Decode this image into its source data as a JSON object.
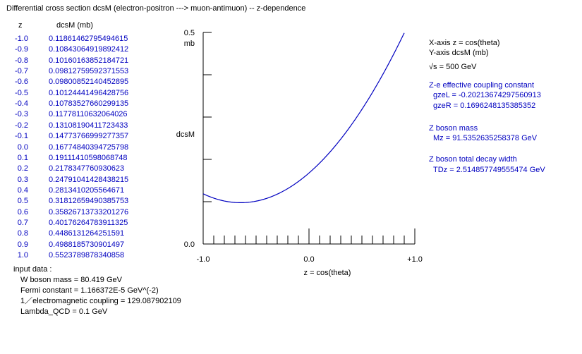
{
  "title": "Differential cross section  dcsM (electron-positron ---> muon-antimuon) -- z-dependence",
  "table": {
    "header_z": "z",
    "header_value": "dcsM  (mb)",
    "rows": [
      {
        "z": "-1.0",
        "v": "0.11861462795494615"
      },
      {
        "z": "-0.9",
        "v": "0.10843064919892412"
      },
      {
        "z": "-0.8",
        "v": "0.10160163852184721"
      },
      {
        "z": "-0.7",
        "v": "0.09812759592371553"
      },
      {
        "z": "-0.6",
        "v": "0.09800852140452895"
      },
      {
        "z": "-0.5",
        "v": "0.10124441496428756"
      },
      {
        "z": "-0.4",
        "v": "0.10783527660299135"
      },
      {
        "z": "-0.3",
        "v": "0.11778110632064026"
      },
      {
        "z": "-0.2",
        "v": "0.13108190411723433"
      },
      {
        "z": "-0.1",
        "v": "0.14773766999277357"
      },
      {
        "z": "0.0",
        "v": "0.16774840394725798"
      },
      {
        "z": "0.1",
        "v": "0.19111410598068748"
      },
      {
        "z": "0.2",
        "v": "0.2178347760930623"
      },
      {
        "z": "0.3",
        "v": "0.24791041428438215"
      },
      {
        "z": "0.4",
        "v": "0.2813410205564671"
      },
      {
        "z": "0.5",
        "v": "0.31812659490385753"
      },
      {
        "z": "0.6",
        "v": "0.35826713733201276"
      },
      {
        "z": "0.7",
        "v": "0.40176264783911325"
      },
      {
        "z": "0.8",
        "v": "0.4486131264251591"
      },
      {
        "z": "0.9",
        "v": "0.4988185730901497"
      },
      {
        "z": "1.0",
        "v": "0.5523789878340858"
      }
    ]
  },
  "input": {
    "heading": "input data :",
    "lines": [
      "W boson mass = 80.419 GeV",
      "Fermi constant = 1.166372E-5 GeV^(-2)",
      "1／electromagnetic coupling = 129.087902109",
      "Lambda_QCD = 0.1 GeV"
    ]
  },
  "info": {
    "x_axis": "X-axis  z = cos(theta)",
    "y_axis": "Y-axis  dcsM (mb)",
    "sqrt_symbol": "√",
    "sqrt_s": "s = 500 GeV",
    "coupling_heading": "Z-e effective coupling constant",
    "gzeL": "gzeL = -0.20213674297560913",
    "gzeR": "gzeR = 0.1696248135385352",
    "mass_heading": "Z boson mass",
    "mz": "Mz = 91.5352635258378 GeV",
    "width_heading": "Z boson total decay width",
    "tdz": "TDz = 2.514857749555474 GeV"
  },
  "colors": {
    "accent": "#0000c0",
    "curve": "#0000c0",
    "axis": "#000000",
    "background": "#ffffff"
  },
  "chart_data": {
    "type": "line",
    "title": "",
    "xlabel": "z = cos(theta)",
    "ylabel": "dcsM",
    "y_unit": "mb",
    "xlim": [
      -1.0,
      1.0
    ],
    "ylim": [
      0.0,
      0.5
    ],
    "x_tick_labels": [
      "-1.0",
      "0.0",
      "+1.0"
    ],
    "y_tick_labels": [
      "0.5",
      "0.0"
    ],
    "y_unit_label": "mb",
    "grid": false,
    "series": [
      {
        "x": [
          -1.0,
          -0.9,
          -0.8,
          -0.7,
          -0.6,
          -0.5,
          -0.4,
          -0.3,
          -0.2,
          -0.1,
          0.0,
          0.1,
          0.2,
          0.3,
          0.4,
          0.5,
          0.6,
          0.7,
          0.8,
          0.9,
          1.0
        ],
        "y": [
          0.11861462795494615,
          0.10843064919892412,
          0.10160163852184721,
          0.09812759592371553,
          0.09800852140452895,
          0.10124441496428756,
          0.10783527660299135,
          0.11778110632064026,
          0.13108190411723433,
          0.14773766999277357,
          0.16774840394725798,
          0.19111410598068748,
          0.2178347760930623,
          0.24791041428438215,
          0.2813410205564671,
          0.31812659490385753,
          0.35826713733201276,
          0.40176264783911325,
          0.4486131264251591,
          0.4988185730901497,
          0.5523789878340858
        ]
      }
    ]
  }
}
